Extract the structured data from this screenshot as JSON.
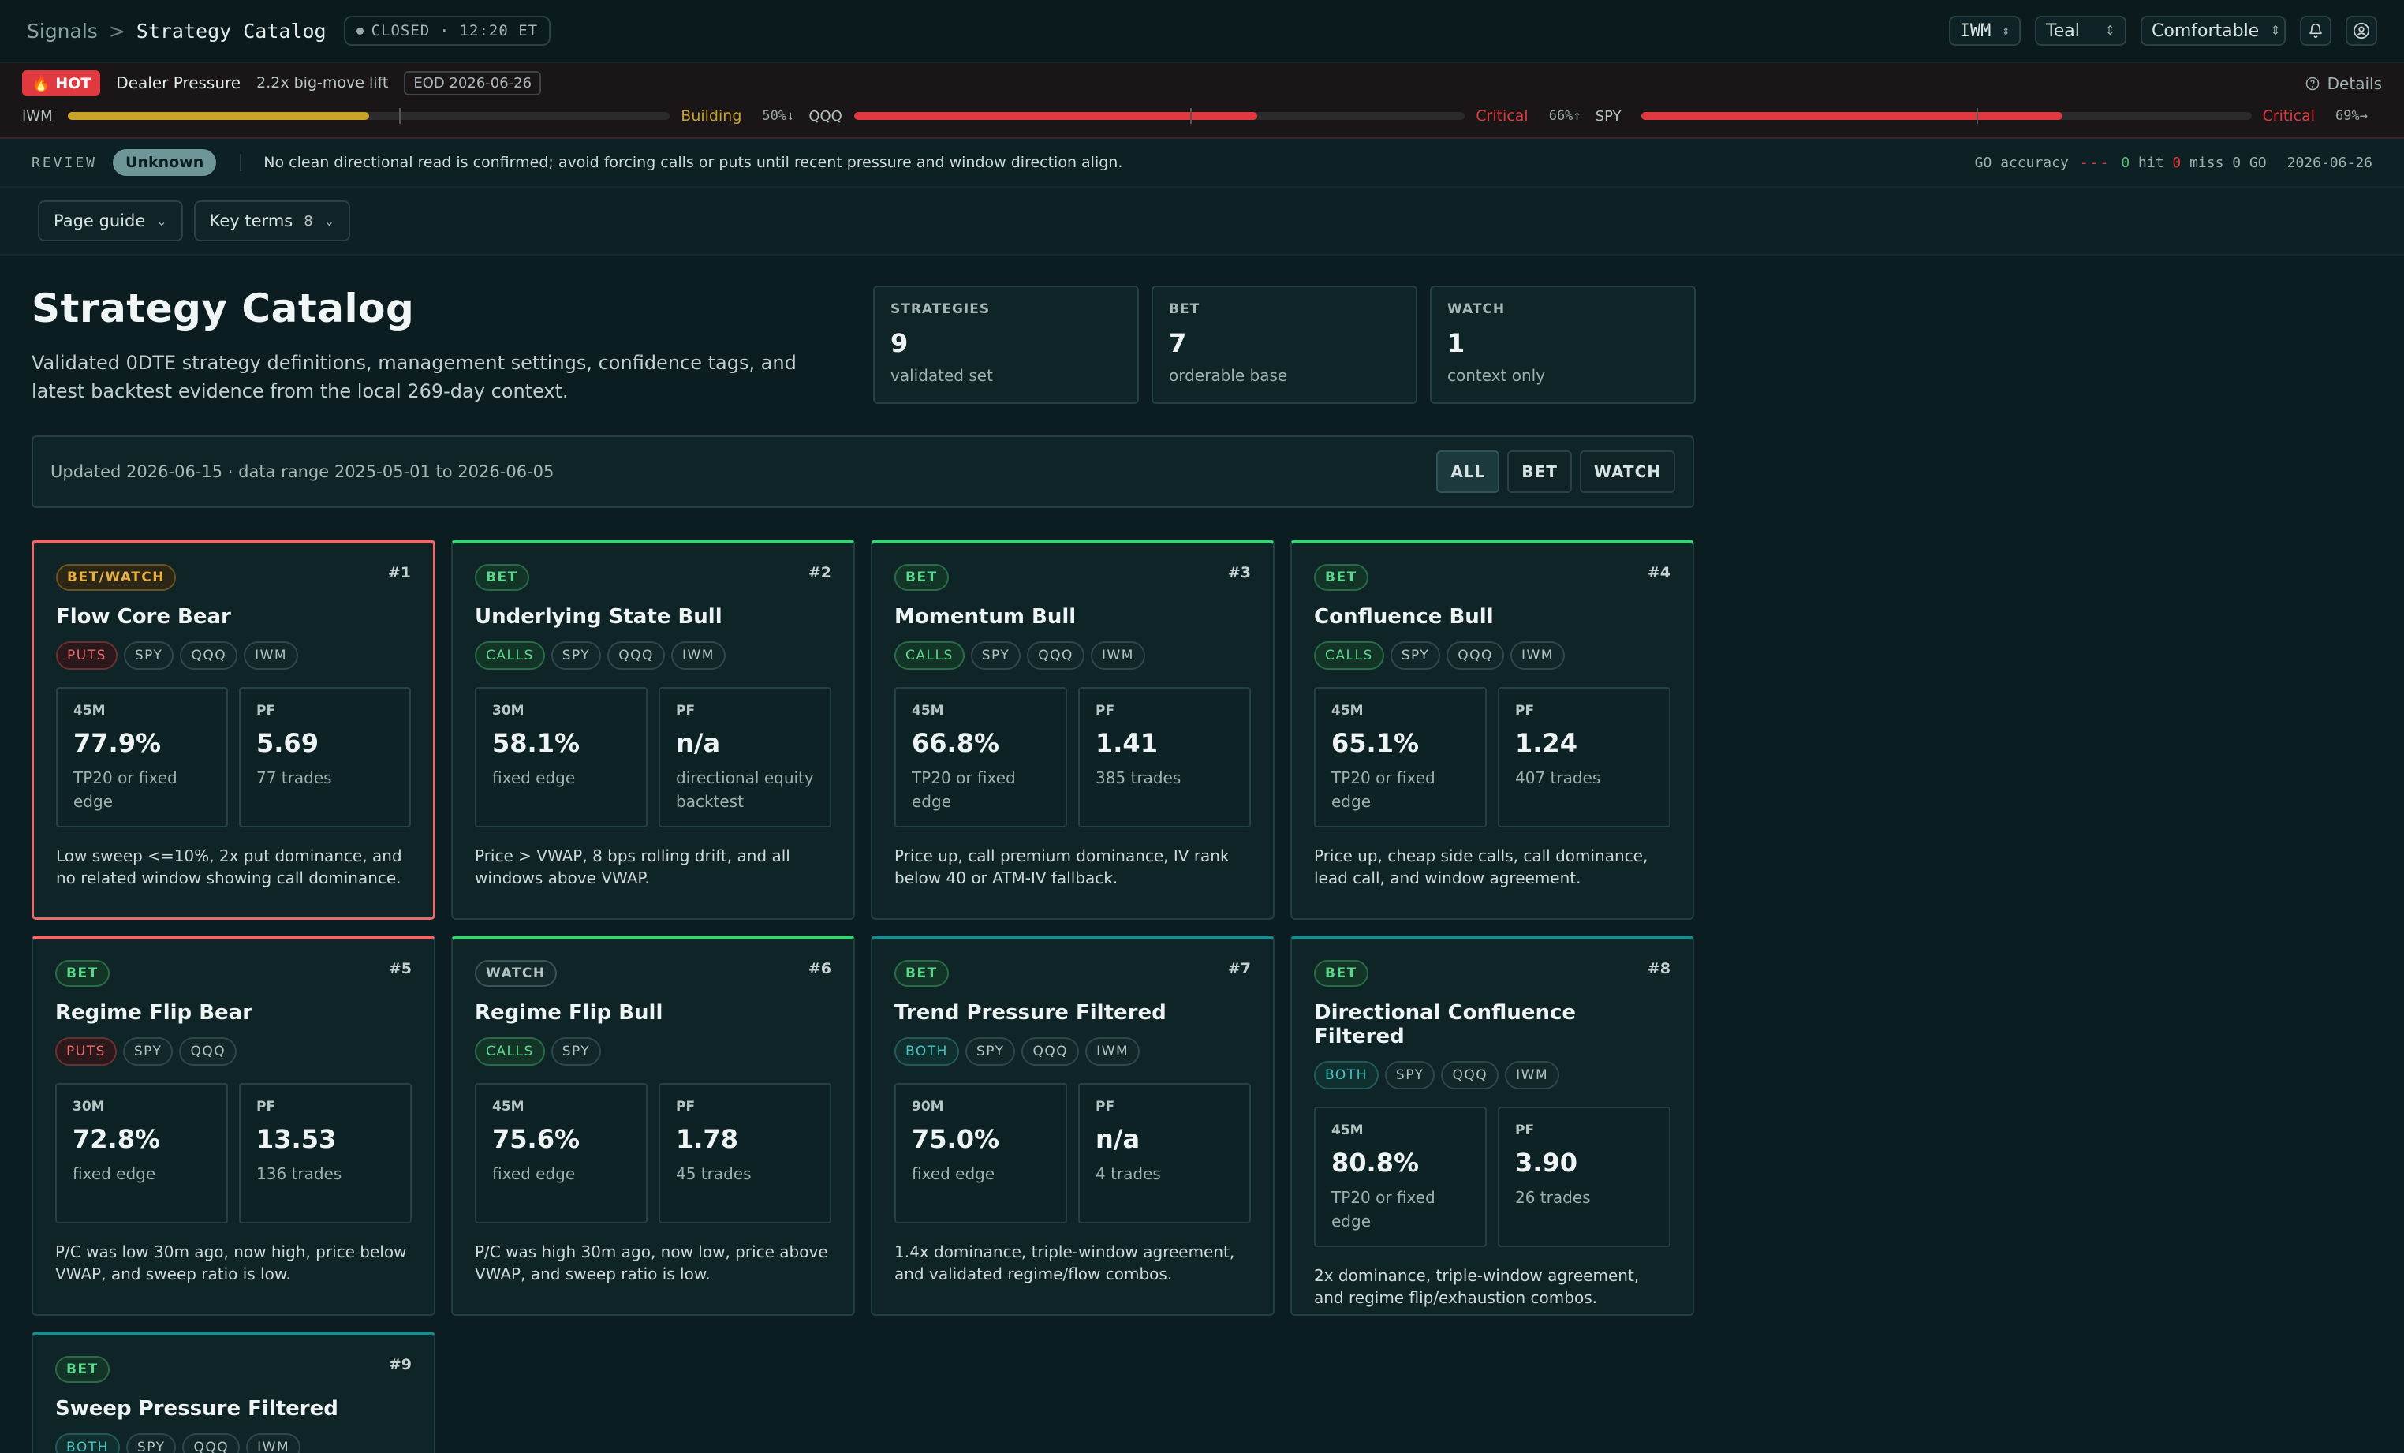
{
  "topbar": {
    "root": "Signals",
    "separator": ">",
    "current": "Strategy Catalog",
    "status": "CLOSED · 12:20 ET",
    "symbol_select": "IWM",
    "theme_select": "Teal",
    "density_select": "Comfortable"
  },
  "pressure": {
    "hot_label": "🔥 HOT",
    "title": "Dealer Pressure",
    "lift": "2.2x big-move lift",
    "eod": "EOD 2026-06-26",
    "details_label": "Details",
    "items": [
      {
        "symbol": "IWM",
        "level": 0.5,
        "color": "#c9a227",
        "status": "Building",
        "value": "50%↓"
      },
      {
        "symbol": "QQQ",
        "level": 0.66,
        "color": "#e0393f",
        "status": "Critical",
        "value": "66%↑"
      },
      {
        "symbol": "SPY",
        "level": 0.69,
        "color": "#e0393f",
        "status": "Critical",
        "value": "69%→"
      }
    ]
  },
  "review": {
    "label": "REVIEW",
    "status": "Unknown",
    "text": "No clean directional read is confirmed; avoid forcing calls or puts until recent pressure and window direction align.",
    "accuracy_label": "GO accuracy",
    "accuracy_dash": "---",
    "hit_count": "0",
    "hit_label": "hit",
    "miss_count": "0",
    "miss_label": "miss 0 GO",
    "date": "2026-06-26"
  },
  "guides": {
    "page_guide": "Page guide",
    "key_terms": "Key terms",
    "key_terms_count": "8"
  },
  "header": {
    "title": "Strategy Catalog",
    "subtitle": "Validated 0DTE strategy definitions, management settings, confidence tags, and latest backtest evidence from the local 269-day context."
  },
  "stats": [
    {
      "label": "STRATEGIES",
      "value": "9",
      "sub": "validated set"
    },
    {
      "label": "BET",
      "value": "7",
      "sub": "orderable base"
    },
    {
      "label": "WATCH",
      "value": "1",
      "sub": "context only"
    }
  ],
  "filter": {
    "updated": "Updated 2026-06-15 · data range 2025-05-01 to 2026-06-05",
    "buttons": [
      "ALL",
      "BET",
      "WATCH"
    ]
  },
  "cards": [
    {
      "badge": "BET/WATCH",
      "num": "#1",
      "title": "Flow Core Bear",
      "tags": [
        "PUTS",
        "SPY",
        "QQQ",
        "IWM"
      ],
      "m1_label": "45M",
      "m1_value": "77.9%",
      "m1_sub": "TP20 or fixed edge",
      "m2_label": "PF",
      "m2_value": "5.69",
      "m2_sub": "77 trades",
      "desc": "Low sweep <=10%, 2x put dominance, and no related window showing call dominance."
    },
    {
      "badge": "BET",
      "num": "#2",
      "title": "Underlying State Bull",
      "tags": [
        "CALLS",
        "SPY",
        "QQQ",
        "IWM"
      ],
      "m1_label": "30M",
      "m1_value": "58.1%",
      "m1_sub": "fixed edge",
      "m2_label": "PF",
      "m2_value": "n/a",
      "m2_sub": "directional equity backtest",
      "desc": "Price > VWAP, 8 bps rolling drift, and all windows above VWAP."
    },
    {
      "badge": "BET",
      "num": "#3",
      "title": "Momentum Bull",
      "tags": [
        "CALLS",
        "SPY",
        "QQQ",
        "IWM"
      ],
      "m1_label": "45M",
      "m1_value": "66.8%",
      "m1_sub": "TP20 or fixed edge",
      "m2_label": "PF",
      "m2_value": "1.41",
      "m2_sub": "385 trades",
      "desc": "Price up, call premium dominance, IV rank below 40 or ATM-IV fallback."
    },
    {
      "badge": "BET",
      "num": "#4",
      "title": "Confluence Bull",
      "tags": [
        "CALLS",
        "SPY",
        "QQQ",
        "IWM"
      ],
      "m1_label": "45M",
      "m1_value": "65.1%",
      "m1_sub": "TP20 or fixed edge",
      "m2_label": "PF",
      "m2_value": "1.24",
      "m2_sub": "407 trades",
      "desc": "Price up, cheap side calls, call dominance, lead call, and window agreement."
    },
    {
      "badge": "BET",
      "num": "#5",
      "title": "Regime Flip Bear",
      "tags": [
        "PUTS",
        "SPY",
        "QQQ"
      ],
      "m1_label": "30M",
      "m1_value": "72.8%",
      "m1_sub": "fixed edge",
      "m2_label": "PF",
      "m2_value": "13.53",
      "m2_sub": "136 trades",
      "desc": "P/C was low 30m ago, now high, price below VWAP, and sweep ratio is low."
    },
    {
      "badge": "WATCH",
      "num": "#6",
      "title": "Regime Flip Bull",
      "tags": [
        "CALLS",
        "SPY"
      ],
      "m1_label": "45M",
      "m1_value": "75.6%",
      "m1_sub": "fixed edge",
      "m2_label": "PF",
      "m2_value": "1.78",
      "m2_sub": "45 trades",
      "desc": "P/C was high 30m ago, now low, price above VWAP, and sweep ratio is low."
    },
    {
      "badge": "BET",
      "num": "#7",
      "title": "Trend Pressure Filtered",
      "tags": [
        "BOTH",
        "SPY",
        "QQQ",
        "IWM"
      ],
      "m1_label": "90M",
      "m1_value": "75.0%",
      "m1_sub": "fixed edge",
      "m2_label": "PF",
      "m2_value": "n/a",
      "m2_sub": "4 trades",
      "desc": "1.4x dominance, triple-window agreement, and validated regime/flow combos."
    },
    {
      "badge": "BET",
      "num": "#8",
      "title": "Directional Confluence Filtered",
      "tags": [
        "BOTH",
        "SPY",
        "QQQ",
        "IWM"
      ],
      "m1_label": "45M",
      "m1_value": "80.8%",
      "m1_sub": "TP20 or fixed edge",
      "m2_label": "PF",
      "m2_value": "3.90",
      "m2_sub": "26 trades",
      "desc": "2x dominance, triple-window agreement, and regime flip/exhaustion combos."
    },
    {
      "badge": "BET",
      "num": "#9",
      "title": "Sweep Pressure Filtered",
      "tags": [
        "BOTH",
        "SPY",
        "QQQ",
        "IWM"
      ],
      "m1_label": "",
      "m1_value": "",
      "m1_sub": "",
      "m2_label": "",
      "m2_value": "",
      "m2_sub": "",
      "desc": ""
    }
  ]
}
